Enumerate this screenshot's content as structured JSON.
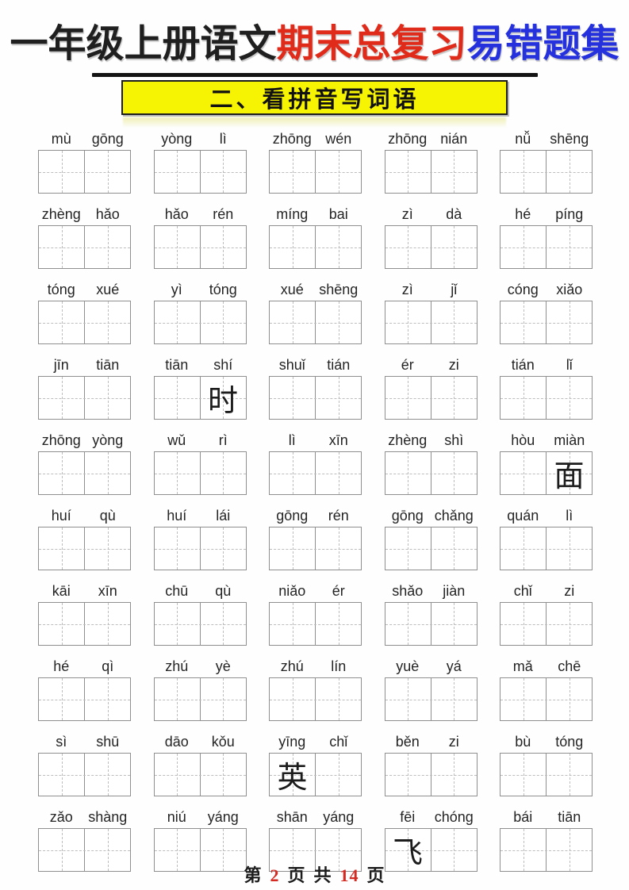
{
  "header": {
    "title_segments": [
      {
        "text": "一年级上册语文",
        "color": "#1f1f1f"
      },
      {
        "text": "期末总复习",
        "color": "#e02a1a"
      },
      {
        "text": "易错题集",
        "color": "#2431dd"
      }
    ],
    "section_heading": "二、看拼音写词语",
    "banner_bg": "#f6f303"
  },
  "footer": {
    "parts": [
      {
        "text": "第",
        "color": "#1c1c1c"
      },
      {
        "text": "2",
        "color": "#d42a22"
      },
      {
        "text": "页",
        "color": "#1c1c1c"
      },
      {
        "text": "共",
        "color": "#1c1c1c"
      },
      {
        "text": "14",
        "color": "#d42a22"
      },
      {
        "text": "页",
        "color": "#1c1c1c"
      }
    ]
  },
  "rows": [
    {
      "groups": [
        {
          "pinyin": [
            "mù",
            "gōng"
          ],
          "filled": [
            "",
            ""
          ]
        },
        {
          "pinyin": [
            "yòng",
            "lì"
          ],
          "filled": [
            "",
            ""
          ]
        },
        {
          "pinyin": [
            "zhōng",
            "wén"
          ],
          "filled": [
            "",
            ""
          ]
        },
        {
          "pinyin": [
            "zhōng",
            "nián"
          ],
          "filled": [
            "",
            ""
          ]
        },
        {
          "pinyin": [
            "nǚ",
            "shēng"
          ],
          "filled": [
            "",
            ""
          ]
        }
      ]
    },
    {
      "groups": [
        {
          "pinyin": [
            "zhèng",
            "hǎo"
          ],
          "filled": [
            "",
            ""
          ]
        },
        {
          "pinyin": [
            "hǎo",
            "rén"
          ],
          "filled": [
            "",
            ""
          ]
        },
        {
          "pinyin": [
            "míng",
            "bai"
          ],
          "filled": [
            "",
            ""
          ]
        },
        {
          "pinyin": [
            "zì",
            "dà"
          ],
          "filled": [
            "",
            ""
          ]
        },
        {
          "pinyin": [
            "hé",
            "píng"
          ],
          "filled": [
            "",
            ""
          ]
        }
      ]
    },
    {
      "groups": [
        {
          "pinyin": [
            "tóng",
            "xué"
          ],
          "filled": [
            "",
            ""
          ]
        },
        {
          "pinyin": [
            "yì",
            "tóng"
          ],
          "filled": [
            "",
            ""
          ]
        },
        {
          "pinyin": [
            "xué",
            "shēng"
          ],
          "filled": [
            "",
            ""
          ]
        },
        {
          "pinyin": [
            "zì",
            "jǐ"
          ],
          "filled": [
            "",
            ""
          ]
        },
        {
          "pinyin": [
            "cóng",
            "xiǎo"
          ],
          "filled": [
            "",
            ""
          ]
        }
      ]
    },
    {
      "groups": [
        {
          "pinyin": [
            "jīn",
            "tiān"
          ],
          "filled": [
            "",
            ""
          ]
        },
        {
          "pinyin": [
            "tiān",
            "shí"
          ],
          "filled": [
            "",
            "时"
          ]
        },
        {
          "pinyin": [
            "shuǐ",
            "tián"
          ],
          "filled": [
            "",
            ""
          ]
        },
        {
          "pinyin": [
            "ér",
            "zi"
          ],
          "filled": [
            "",
            ""
          ]
        },
        {
          "pinyin": [
            "tián",
            "lǐ"
          ],
          "filled": [
            "",
            ""
          ]
        }
      ]
    },
    {
      "groups": [
        {
          "pinyin": [
            "zhōng",
            "yòng"
          ],
          "filled": [
            "",
            ""
          ]
        },
        {
          "pinyin": [
            "wǔ",
            "rì"
          ],
          "filled": [
            "",
            ""
          ]
        },
        {
          "pinyin": [
            "lì",
            "xīn"
          ],
          "filled": [
            "",
            ""
          ]
        },
        {
          "pinyin": [
            "zhèng",
            "shì"
          ],
          "filled": [
            "",
            ""
          ]
        },
        {
          "pinyin": [
            "hòu",
            "miàn"
          ],
          "filled": [
            "",
            "面"
          ]
        }
      ]
    },
    {
      "groups": [
        {
          "pinyin": [
            "huí",
            "qù"
          ],
          "filled": [
            "",
            ""
          ]
        },
        {
          "pinyin": [
            "huí",
            "lái"
          ],
          "filled": [
            "",
            ""
          ]
        },
        {
          "pinyin": [
            "gōng",
            "rén"
          ],
          "filled": [
            "",
            ""
          ]
        },
        {
          "pinyin": [
            "gōng",
            "chǎng"
          ],
          "filled": [
            "",
            ""
          ]
        },
        {
          "pinyin": [
            "quán",
            "lì"
          ],
          "filled": [
            "",
            ""
          ]
        }
      ]
    },
    {
      "groups": [
        {
          "pinyin": [
            "kāi",
            "xīn"
          ],
          "filled": [
            "",
            ""
          ]
        },
        {
          "pinyin": [
            "chū",
            "qù"
          ],
          "filled": [
            "",
            ""
          ]
        },
        {
          "pinyin": [
            "niǎo",
            "ér"
          ],
          "filled": [
            "",
            ""
          ]
        },
        {
          "pinyin": [
            "shǎo",
            "jiàn"
          ],
          "filled": [
            "",
            ""
          ]
        },
        {
          "pinyin": [
            "chǐ",
            "zi"
          ],
          "filled": [
            "",
            ""
          ]
        }
      ]
    },
    {
      "groups": [
        {
          "pinyin": [
            "hé",
            "qì"
          ],
          "filled": [
            "",
            ""
          ]
        },
        {
          "pinyin": [
            "zhú",
            "yè"
          ],
          "filled": [
            "",
            ""
          ]
        },
        {
          "pinyin": [
            "zhú",
            "lín"
          ],
          "filled": [
            "",
            ""
          ]
        },
        {
          "pinyin": [
            "yuè",
            "yá"
          ],
          "filled": [
            "",
            ""
          ]
        },
        {
          "pinyin": [
            "mǎ",
            "chē"
          ],
          "filled": [
            "",
            ""
          ]
        }
      ]
    },
    {
      "groups": [
        {
          "pinyin": [
            "sì",
            "shū"
          ],
          "filled": [
            "",
            ""
          ]
        },
        {
          "pinyin": [
            "dāo",
            "kǒu"
          ],
          "filled": [
            "",
            ""
          ]
        },
        {
          "pinyin": [
            "yīng",
            "chǐ"
          ],
          "filled": [
            "英",
            ""
          ]
        },
        {
          "pinyin": [
            "běn",
            "zi"
          ],
          "filled": [
            "",
            ""
          ]
        },
        {
          "pinyin": [
            "bù",
            "tóng"
          ],
          "filled": [
            "",
            ""
          ]
        }
      ]
    },
    {
      "groups": [
        {
          "pinyin": [
            "zǎo",
            "shàng"
          ],
          "filled": [
            "",
            ""
          ]
        },
        {
          "pinyin": [
            "niú",
            "yáng"
          ],
          "filled": [
            "",
            ""
          ]
        },
        {
          "pinyin": [
            "shān",
            "yáng"
          ],
          "filled": [
            "",
            ""
          ]
        },
        {
          "pinyin": [
            "fēi",
            "chóng"
          ],
          "filled": [
            "飞",
            ""
          ]
        },
        {
          "pinyin": [
            "bái",
            "tiān"
          ],
          "filled": [
            "",
            ""
          ]
        }
      ]
    }
  ]
}
